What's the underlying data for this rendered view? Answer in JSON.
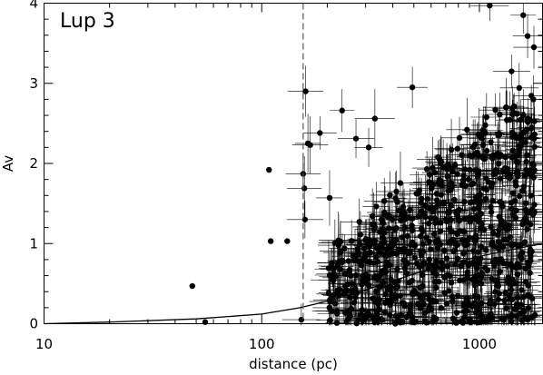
{
  "chart_data": {
    "type": "scatter",
    "title": "",
    "annotation": "Lup 3",
    "xlabel": "distance (pc)",
    "ylabel": "Av",
    "x_scale": "log",
    "xlim": [
      10,
      1950
    ],
    "ylim": [
      0,
      4
    ],
    "x_ticks": [
      "10",
      "100",
      "1000"
    ],
    "y_ticks": [
      "0",
      "1",
      "2",
      "3",
      "4"
    ],
    "grid": false,
    "legend": "none",
    "reference_line": {
      "style": "dashed",
      "x": 155
    },
    "model_curve": [
      [
        10,
        0.0
      ],
      [
        20,
        0.02
      ],
      [
        50,
        0.06
      ],
      [
        100,
        0.12
      ],
      [
        150,
        0.2
      ],
      [
        200,
        0.28
      ],
      [
        300,
        0.42
      ],
      [
        500,
        0.62
      ],
      [
        700,
        0.74
      ],
      [
        1000,
        0.84
      ],
      [
        1500,
        0.94
      ],
      [
        1950,
        1.0
      ]
    ],
    "series": [
      {
        "marker": "filled-circle",
        "points": [
          [
            48,
            0.47
          ],
          [
            55,
            0.02
          ],
          [
            108,
            1.92
          ],
          [
            110,
            1.03
          ],
          [
            131,
            1.03
          ],
          [
            155,
            1.87
          ],
          [
            157,
            1.69
          ],
          [
            159,
            2.9
          ],
          [
            163,
            2.25
          ],
          [
            167,
            2.23
          ],
          [
            158,
            1.3
          ],
          [
            152,
            0.05
          ],
          [
            185,
            2.38
          ],
          [
            205,
            1.57
          ],
          [
            225,
            1.04
          ],
          [
            234,
            2.66
          ],
          [
            271,
            2.31
          ],
          [
            310,
            2.2
          ],
          [
            331,
            2.56
          ],
          [
            492,
            2.95
          ],
          [
            1115,
            3.97
          ],
          [
            1590,
            3.85
          ],
          [
            1665,
            3.59
          ],
          [
            1780,
            3.45
          ],
          [
            1405,
            3.15
          ],
          [
            1330,
            2.7
          ],
          [
            1560,
            2.25
          ],
          [
            1720,
            1.6
          ],
          [
            1650,
            1.28
          ],
          [
            1740,
            0.9
          ],
          [
            1240,
            0.65
          ],
          [
            1110,
            0.25
          ],
          [
            1000,
            0.18
          ],
          [
            930,
            0.55
          ],
          [
            860,
            0.98
          ],
          [
            810,
            1.42
          ]
        ]
      }
    ]
  }
}
